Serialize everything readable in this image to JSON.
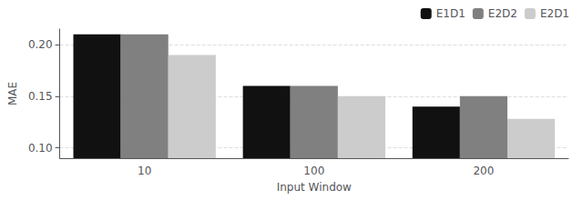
{
  "chart_data": {
    "type": "bar",
    "categories": [
      "10",
      "100",
      "200"
    ],
    "series": [
      {
        "name": "E1D1",
        "color": "#111111",
        "values": [
          0.21,
          0.16,
          0.14
        ]
      },
      {
        "name": "E2D2",
        "color": "#808080",
        "values": [
          0.21,
          0.16,
          0.15
        ]
      },
      {
        "name": "E2D1",
        "color": "#cccccc",
        "values": [
          0.19,
          0.15,
          0.128
        ]
      }
    ],
    "xlabel": "Input Window",
    "ylabel": "MAE",
    "ylim": [
      0.09,
      0.215
    ],
    "yticks": [
      {
        "value": 0.1,
        "label": "0.10"
      },
      {
        "value": 0.15,
        "label": "0.15"
      },
      {
        "value": 0.2,
        "label": "0.20"
      }
    ],
    "grid": true,
    "legend": "upper right"
  }
}
